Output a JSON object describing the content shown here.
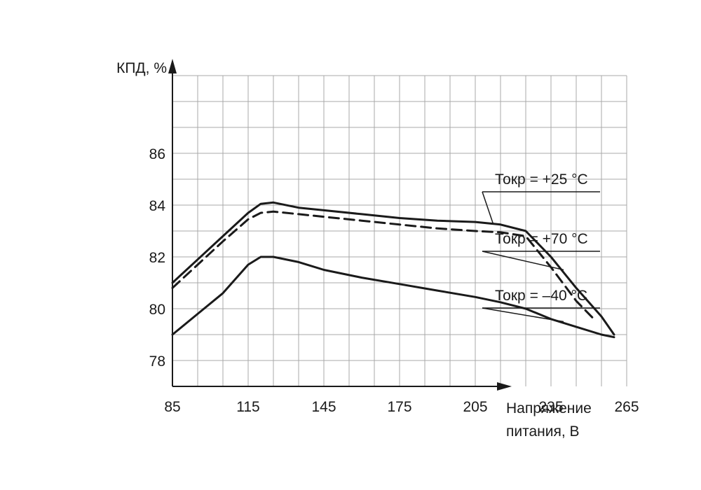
{
  "chart_data": {
    "type": "line",
    "xlabel": [
      "Напряжение",
      "питания, В"
    ],
    "ylabel": "КПД, %",
    "xlim": [
      85,
      285
    ],
    "ylim": [
      77,
      89
    ],
    "x_ticks": [
      85,
      115,
      145,
      175,
      205,
      235,
      265
    ],
    "y_ticks": [
      78,
      80,
      82,
      84,
      86
    ],
    "grid": true,
    "legend": "right, leader lines to curves",
    "colors": {
      "line": "#1a1a1a",
      "grid": "#a9a9a9",
      "leader": "#1a1a1a"
    },
    "series": [
      {
        "name": "Токр = +25 °C",
        "style": "solid",
        "points": [
          [
            85,
            81.0
          ],
          [
            95,
            81.9
          ],
          [
            105,
            82.8
          ],
          [
            115,
            83.7
          ],
          [
            120,
            84.05
          ],
          [
            125,
            84.1
          ],
          [
            135,
            83.9
          ],
          [
            145,
            83.8
          ],
          [
            160,
            83.65
          ],
          [
            175,
            83.5
          ],
          [
            190,
            83.4
          ],
          [
            205,
            83.35
          ],
          [
            215,
            83.25
          ],
          [
            225,
            83.0
          ],
          [
            235,
            82.0
          ],
          [
            245,
            80.8
          ],
          [
            255,
            79.7
          ],
          [
            260,
            79.0
          ]
        ],
        "leader_at": [
          212,
          83.3
        ]
      },
      {
        "name": "Токр = +70 °C",
        "style": "dashed",
        "points": [
          [
            85,
            80.8
          ],
          [
            95,
            81.7
          ],
          [
            105,
            82.6
          ],
          [
            115,
            83.45
          ],
          [
            120,
            83.7
          ],
          [
            125,
            83.75
          ],
          [
            135,
            83.65
          ],
          [
            145,
            83.55
          ],
          [
            160,
            83.4
          ],
          [
            175,
            83.25
          ],
          [
            190,
            83.1
          ],
          [
            205,
            83.0
          ],
          [
            215,
            82.95
          ],
          [
            225,
            82.8
          ],
          [
            235,
            81.6
          ],
          [
            245,
            80.3
          ],
          [
            252,
            79.6
          ]
        ],
        "leader_at": [
          240,
          81.5
        ]
      },
      {
        "name": "Токр = –40 °C",
        "style": "solid",
        "points": [
          [
            85,
            79.0
          ],
          [
            95,
            79.8
          ],
          [
            105,
            80.6
          ],
          [
            115,
            81.7
          ],
          [
            120,
            82.0
          ],
          [
            125,
            82.0
          ],
          [
            135,
            81.8
          ],
          [
            145,
            81.5
          ],
          [
            160,
            81.2
          ],
          [
            175,
            80.95
          ],
          [
            190,
            80.7
          ],
          [
            205,
            80.45
          ],
          [
            215,
            80.25
          ],
          [
            225,
            80.0
          ],
          [
            235,
            79.6
          ],
          [
            245,
            79.3
          ],
          [
            255,
            79.0
          ],
          [
            260,
            78.9
          ]
        ],
        "leader_at": [
          240,
          79.5
        ]
      }
    ]
  }
}
